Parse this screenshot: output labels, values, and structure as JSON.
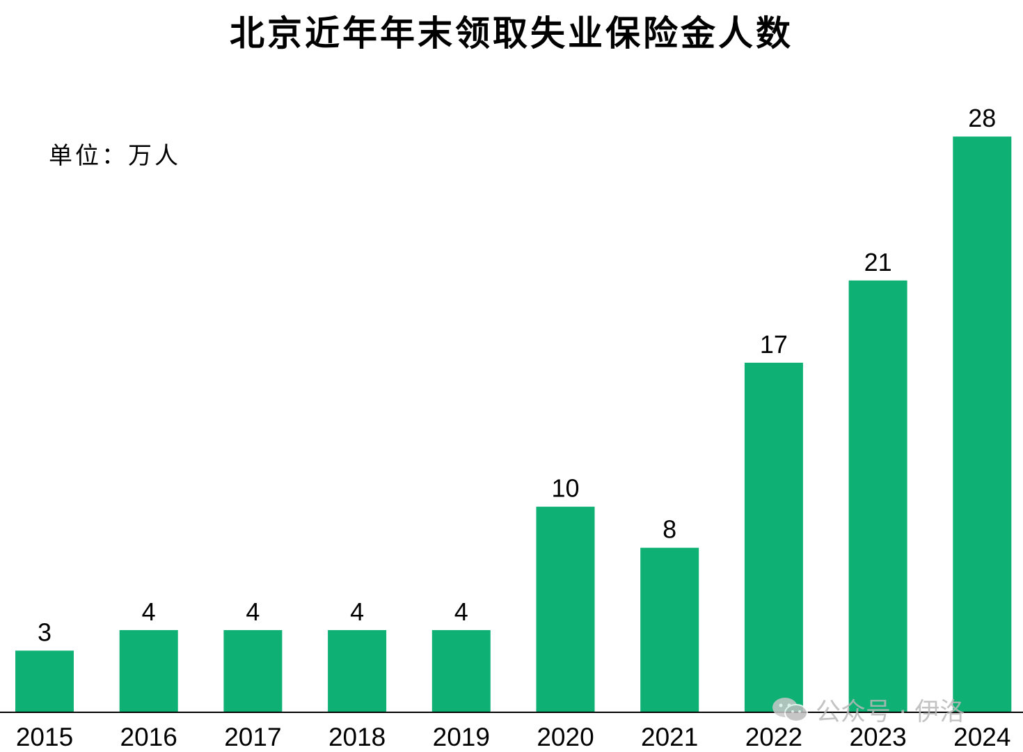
{
  "chart_data": {
    "type": "bar",
    "title": "北京近年年末领取失业保险金人数",
    "unit_label": "单位：万人",
    "categories": [
      "2015",
      "2016",
      "2017",
      "2018",
      "2019",
      "2020",
      "2021",
      "2022",
      "2023",
      "2024"
    ],
    "values": [
      3,
      4,
      4,
      4,
      4,
      10,
      8,
      17,
      21,
      28
    ],
    "value_labels": [
      "3",
      "4",
      "4",
      "4",
      "4",
      "10",
      "8",
      "17",
      "21",
      "28"
    ],
    "ylim": [
      0,
      30
    ],
    "grid": false,
    "legend": "none",
    "bar_color": "#0fb074"
  },
  "watermark": {
    "icon": "wechat-icon",
    "text": "公众号 · 伊洛"
  }
}
